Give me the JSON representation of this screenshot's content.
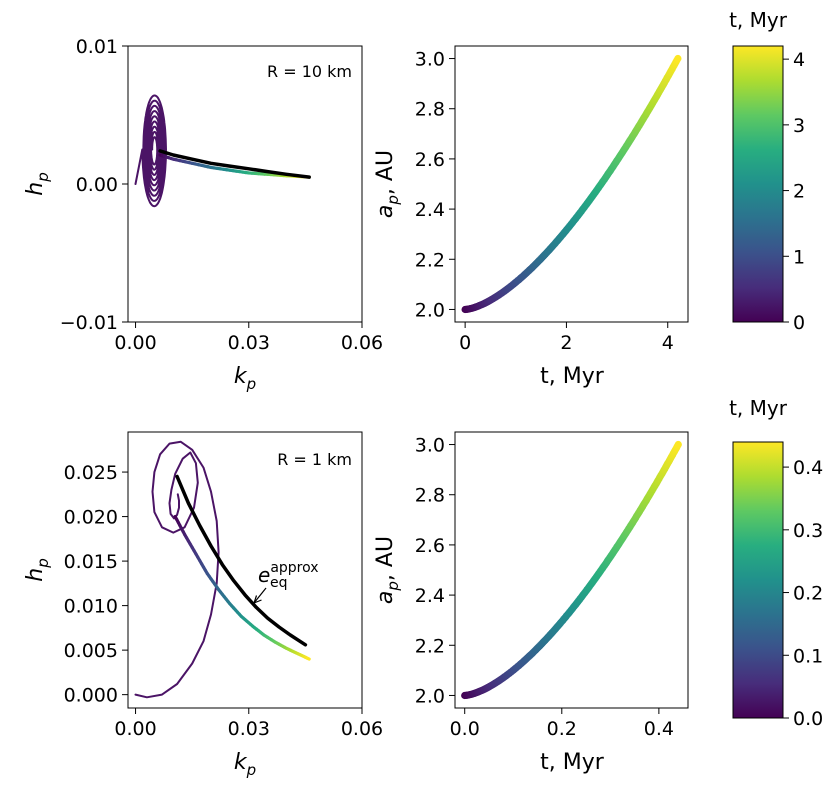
{
  "chart_data": [
    {
      "id": "top-left",
      "type": "line",
      "title": "",
      "annotation": "R = 10 km",
      "xlabel": "k",
      "xlabel_sub": "p",
      "ylabel": "h",
      "ylabel_sub": "p",
      "xlim": [
        -0.002,
        0.06
      ],
      "ylim": [
        -0.01,
        0.01
      ],
      "xticks": [
        0.0,
        0.03,
        0.06
      ],
      "xtick_labels": [
        "0.00",
        "0.03",
        "0.06"
      ],
      "yticks": [
        -0.01,
        0.0,
        0.01
      ],
      "ytick_labels": [
        "−0.01",
        "0.00",
        "0.01"
      ],
      "series": [
        {
          "name": "spiral",
          "color": "#4b1466",
          "kind": "spiral",
          "center": [
            0.005,
            0.0025
          ],
          "start": [
            0.0,
            0.0
          ],
          "turns": 9,
          "rx_max": 0.0032,
          "ry_max": 0.0042,
          "rx_min": 0.0006,
          "ry_min": 0.0008
        },
        {
          "name": "trajectory",
          "colormap": "viridis",
          "x": [
            0.0065,
            0.01,
            0.015,
            0.02,
            0.025,
            0.03,
            0.035,
            0.04,
            0.046
          ],
          "y": [
            0.0021,
            0.0018,
            0.0015,
            0.0012,
            0.001,
            0.0008,
            0.0007,
            0.0006,
            0.0005
          ]
        },
        {
          "name": "e_eq approx",
          "color": "#000000",
          "x": [
            0.0065,
            0.01,
            0.015,
            0.02,
            0.025,
            0.03,
            0.035,
            0.04,
            0.046
          ],
          "y": [
            0.0024,
            0.0021,
            0.0018,
            0.0015,
            0.0013,
            0.0011,
            0.0009,
            0.0007,
            0.0005
          ]
        }
      ]
    },
    {
      "id": "top-right",
      "type": "scatter",
      "xlabel": "t, Myr",
      "ylabel": "a",
      "ylabel_sub": "p",
      "ylabel_suffix": ", AU",
      "xlim": [
        -0.2,
        4.4
      ],
      "ylim": [
        1.95,
        3.05
      ],
      "xticks": [
        0,
        2,
        4
      ],
      "xtick_labels": [
        "0",
        "2",
        "4"
      ],
      "yticks": [
        2.0,
        2.2,
        2.4,
        2.6,
        2.8,
        3.0
      ],
      "ytick_labels": [
        "2.0",
        "2.2",
        "2.4",
        "2.6",
        "2.8",
        "3.0"
      ],
      "series": [
        {
          "name": "a_p",
          "colormap": "viridis",
          "t_end": 4.2,
          "a_start": 2.0,
          "a_end": 3.0,
          "shape_exp": 1.55
        }
      ]
    },
    {
      "id": "top-colorbar",
      "type": "colorbar",
      "title": "t, Myr",
      "range": [
        0,
        4.2
      ],
      "ticks": [
        0,
        1,
        2,
        3,
        4
      ],
      "tick_labels": [
        "0",
        "1",
        "2",
        "3",
        "4"
      ]
    },
    {
      "id": "bottom-left",
      "type": "line",
      "annotation": "R = 1 km",
      "xlabel": "k",
      "xlabel_sub": "p",
      "ylabel": "h",
      "ylabel_sub": "p",
      "xlim": [
        -0.002,
        0.06
      ],
      "ylim": [
        -0.0015,
        0.0295
      ],
      "xticks": [
        0.0,
        0.03,
        0.06
      ],
      "xtick_labels": [
        "0.00",
        "0.03",
        "0.06"
      ],
      "yticks": [
        0.0,
        0.005,
        0.01,
        0.015,
        0.02,
        0.025
      ],
      "ytick_labels": [
        "0.000",
        "0.005",
        "0.010",
        "0.015",
        "0.020",
        "0.025"
      ],
      "arrow_label": "e",
      "arrow_label_sub": "eq",
      "arrow_label_sup": "approx",
      "series": [
        {
          "name": "spiral",
          "color": "#4b1466",
          "x": [
            0.0,
            0.003,
            0.007,
            0.011,
            0.015,
            0.018,
            0.02,
            0.0215,
            0.022,
            0.0215,
            0.02,
            0.018,
            0.015,
            0.012,
            0.009,
            0.0065,
            0.005,
            0.0045,
            0.005,
            0.007,
            0.01,
            0.013,
            0.0155,
            0.0165,
            0.016,
            0.0145,
            0.0125,
            0.0105,
            0.0095,
            0.009,
            0.0093,
            0.0102,
            0.011,
            0.0115,
            0.0115,
            0.0112
          ],
          "y": [
            0.0,
            -0.0003,
            0.0,
            0.0012,
            0.0035,
            0.006,
            0.009,
            0.0125,
            0.016,
            0.0195,
            0.0228,
            0.0255,
            0.0275,
            0.0284,
            0.0282,
            0.027,
            0.025,
            0.0228,
            0.0205,
            0.0188,
            0.0182,
            0.0188,
            0.021,
            0.0238,
            0.026,
            0.0272,
            0.0265,
            0.0248,
            0.023,
            0.0215,
            0.0203,
            0.0198,
            0.0202,
            0.021,
            0.0218,
            0.0225
          ]
        },
        {
          "name": "trajectory",
          "colormap": "viridis",
          "x": [
            0.0105,
            0.013,
            0.016,
            0.019,
            0.022,
            0.025,
            0.028,
            0.031,
            0.034,
            0.037,
            0.04,
            0.043,
            0.046
          ],
          "y": [
            0.02,
            0.018,
            0.0158,
            0.0136,
            0.0118,
            0.0102,
            0.0088,
            0.0077,
            0.0067,
            0.0059,
            0.0052,
            0.0046,
            0.004
          ]
        },
        {
          "name": "e_eq approx",
          "color": "#000000",
          "x": [
            0.011,
            0.014,
            0.017,
            0.02,
            0.023,
            0.026,
            0.029,
            0.032,
            0.035,
            0.038,
            0.041,
            0.045
          ],
          "y": [
            0.0245,
            0.0215,
            0.019,
            0.0167,
            0.0146,
            0.0128,
            0.0112,
            0.0098,
            0.0086,
            0.0076,
            0.0067,
            0.0056
          ]
        }
      ]
    },
    {
      "id": "bottom-right",
      "type": "scatter",
      "xlabel": "t, Myr",
      "ylabel": "a",
      "ylabel_sub": "p",
      "ylabel_suffix": ", AU",
      "xlim": [
        -0.02,
        0.46
      ],
      "ylim": [
        1.95,
        3.05
      ],
      "xticks": [
        0.0,
        0.2,
        0.4
      ],
      "xtick_labels": [
        "0.0",
        "0.2",
        "0.4"
      ],
      "yticks": [
        2.0,
        2.2,
        2.4,
        2.6,
        2.8,
        3.0
      ],
      "ytick_labels": [
        "2.0",
        "2.2",
        "2.4",
        "2.6",
        "2.8",
        "3.0"
      ],
      "series": [
        {
          "name": "a_p",
          "colormap": "viridis",
          "t_end": 0.44,
          "a_start": 2.0,
          "a_end": 3.0,
          "shape_exp": 1.55
        }
      ]
    },
    {
      "id": "bottom-colorbar",
      "type": "colorbar",
      "title": "t, Myr",
      "range": [
        0,
        0.44
      ],
      "ticks": [
        0.0,
        0.1,
        0.2,
        0.3,
        0.4
      ],
      "tick_labels": [
        "0.0",
        "0.1",
        "0.2",
        "0.3",
        "0.4"
      ]
    }
  ]
}
